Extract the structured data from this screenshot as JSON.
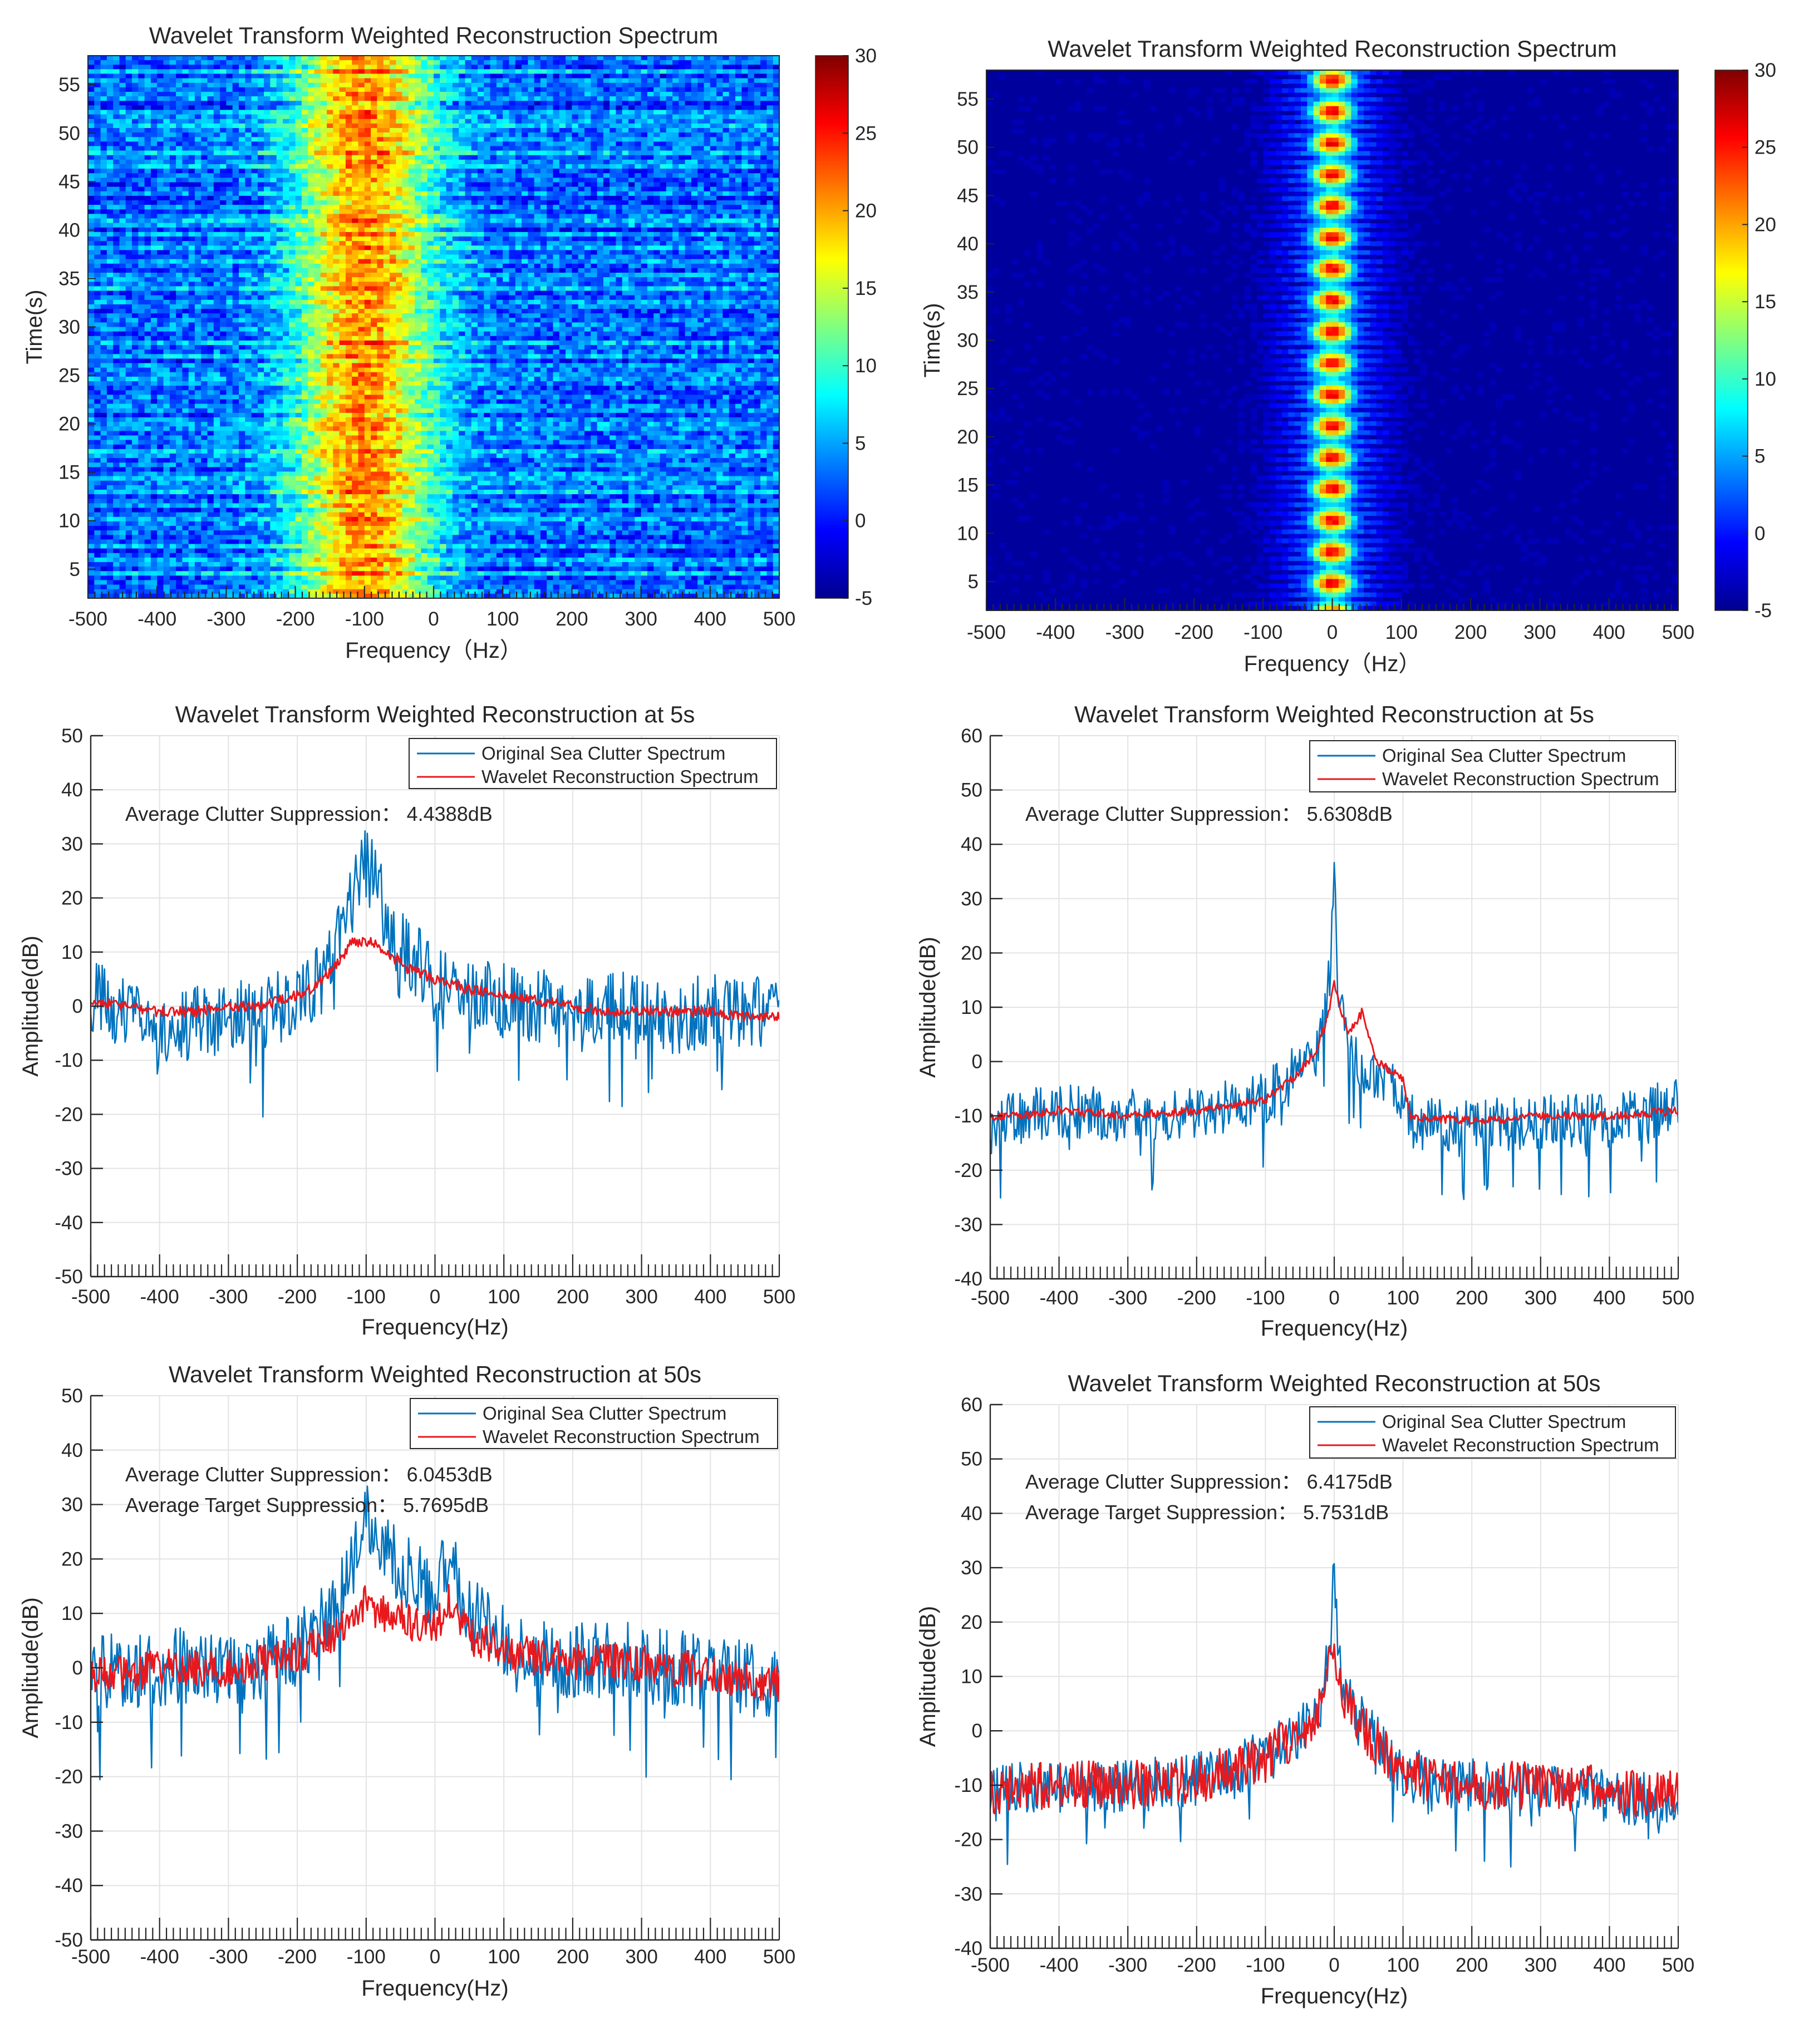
{
  "colors": {
    "blue": "#0072BD",
    "red": "#E8181D",
    "grid": "#e3e3e3",
    "axis": "#262626",
    "heat_bg": "#1e6ef0"
  },
  "chart_data": [
    {
      "id": "p1",
      "type": "heatmap",
      "title": "Wavelet Transform Weighted Reconstruction Spectrum",
      "xlabel": "Frequency（Hz）",
      "ylabel": "Time(s)",
      "xlim": [
        -500,
        500
      ],
      "ylim": [
        2,
        58
      ],
      "xticks": [
        -500,
        -400,
        -300,
        -200,
        -100,
        0,
        100,
        200,
        300,
        400,
        500
      ],
      "yticks": [
        5,
        10,
        15,
        20,
        25,
        30,
        35,
        40,
        45,
        50,
        55
      ],
      "colorbar": {
        "ticks": [
          -5,
          0,
          5,
          10,
          15,
          20,
          25,
          30
        ],
        "clim": [
          -5,
          30
        ]
      },
      "clutter_center_hz": -100,
      "clutter_width_hz": 70,
      "peak_value": 20,
      "background_value": 2.5
    },
    {
      "id": "p2",
      "type": "heatmap",
      "title": "Wavelet Transform Weighted Reconstruction Spectrum",
      "xlabel": "Frequency（Hz）",
      "ylabel": "Time(s)",
      "xlim": [
        -500,
        500
      ],
      "ylim": [
        2,
        58
      ],
      "xticks": [
        -500,
        -400,
        -300,
        -200,
        -100,
        0,
        100,
        200,
        300,
        400,
        500
      ],
      "yticks": [
        5,
        10,
        15,
        20,
        25,
        30,
        35,
        40,
        45,
        50,
        55
      ],
      "colorbar": {
        "ticks": [
          -5,
          0,
          5,
          10,
          15,
          20,
          25,
          30
        ],
        "clim": [
          -5,
          30
        ]
      },
      "clutter_center_hz": 0,
      "clutter_width_hz": 22,
      "peak_value": 24,
      "background_value": -4
    },
    {
      "id": "p3",
      "type": "line",
      "title": "Wavelet Transform Weighted Reconstruction at 5s",
      "xlabel": "Frequency(Hz)",
      "ylabel": "Amplitude(dB)",
      "xlim": [
        -500,
        500
      ],
      "ylim": [
        -50,
        50
      ],
      "xticks": [
        -500,
        -400,
        -300,
        -200,
        -100,
        0,
        100,
        200,
        300,
        400,
        500
      ],
      "yticks": [
        -50,
        -40,
        -30,
        -20,
        -10,
        0,
        10,
        20,
        30,
        40,
        50
      ],
      "legend": [
        "Original Sea Clutter Spectrum",
        "Wavelet Reconstruction Spectrum"
      ],
      "annotations": [
        "Average Clutter Suppression： 4.4388dB"
      ],
      "series": [
        {
          "name": "Original Sea Clutter Spectrum",
          "color": "#0072BD",
          "x": [
            -500,
            -450,
            -400,
            -350,
            -300,
            -250,
            -200,
            -160,
            -130,
            -110,
            -100,
            -80,
            -60,
            -40,
            0,
            50,
            100,
            150,
            200,
            250,
            300,
            350,
            400,
            450,
            500
          ],
          "y": [
            2,
            -2,
            -4,
            -3,
            -2,
            -1,
            1,
            5,
            16,
            25,
            26,
            22,
            14,
            10,
            4,
            2,
            1,
            0,
            -1,
            -1,
            0,
            -2,
            -1,
            -2,
            0
          ]
        },
        {
          "name": "Wavelet Reconstruction Spectrum",
          "color": "#E8181D",
          "x": [
            -500,
            -450,
            -400,
            -350,
            -300,
            -250,
            -200,
            -170,
            -140,
            -120,
            -100,
            -80,
            -60,
            -40,
            0,
            50,
            100,
            150,
            200,
            250,
            300,
            350,
            400,
            450,
            500
          ],
          "y": [
            1,
            0,
            -1,
            -1,
            0,
            0,
            2,
            4,
            8,
            12,
            12,
            11,
            9,
            7,
            5,
            3,
            2,
            1,
            0,
            -1,
            -1,
            -1,
            -1,
            -2,
            -2
          ]
        }
      ]
    },
    {
      "id": "p4",
      "type": "line",
      "title": "Wavelet Transform Weighted Reconstruction at 5s",
      "xlabel": "Frequency(Hz)",
      "ylabel": "Amplitude(dB)",
      "xlim": [
        -500,
        500
      ],
      "ylim": [
        -40,
        60
      ],
      "xticks": [
        -500,
        -400,
        -300,
        -200,
        -100,
        0,
        100,
        200,
        300,
        400,
        500
      ],
      "yticks": [
        -40,
        -30,
        -20,
        -10,
        0,
        10,
        20,
        30,
        40,
        50,
        60
      ],
      "legend": [
        "Original Sea Clutter Spectrum",
        "Wavelet Reconstruction Spectrum"
      ],
      "annotations": [
        "Average Clutter Suppression： 5.6308dB"
      ],
      "series": [
        {
          "name": "Original Sea Clutter Spectrum",
          "color": "#0072BD",
          "x": [
            -500,
            -450,
            -400,
            -300,
            -200,
            -100,
            -60,
            -30,
            -15,
            -5,
            0,
            5,
            15,
            30,
            60,
            100,
            110,
            200,
            300,
            400,
            500
          ],
          "y": [
            -12,
            -10,
            -9,
            -10,
            -9,
            -7,
            -2,
            2,
            7,
            18,
            33,
            16,
            6,
            0,
            -3,
            -6,
            -11,
            -12,
            -11,
            -11,
            -8
          ]
        },
        {
          "name": "Wavelet Reconstruction Spectrum",
          "color": "#E8181D",
          "x": [
            -500,
            -450,
            -400,
            -300,
            -200,
            -100,
            -60,
            -30,
            -15,
            -5,
            0,
            8,
            20,
            40,
            60,
            100,
            110,
            200,
            300,
            400,
            500
          ],
          "y": [
            -10,
            -10,
            -9,
            -10,
            -9,
            -7,
            -3,
            1,
            6,
            11,
            15,
            10,
            5,
            9,
            0,
            -3,
            -10,
            -11,
            -10,
            -10,
            -9
          ]
        }
      ]
    },
    {
      "id": "p5",
      "type": "line",
      "title": "Wavelet Transform Weighted Reconstruction at 50s",
      "xlabel": "Frequency(Hz)",
      "ylabel": "Amplitude(dB)",
      "xlim": [
        -500,
        500
      ],
      "ylim": [
        -50,
        50
      ],
      "xticks": [
        -500,
        -400,
        -300,
        -200,
        -100,
        0,
        100,
        200,
        300,
        400,
        500
      ],
      "yticks": [
        -50,
        -40,
        -30,
        -20,
        -10,
        0,
        10,
        20,
        30,
        40,
        50
      ],
      "legend": [
        "Original Sea Clutter Spectrum",
        "Wavelet Reconstruction Spectrum"
      ],
      "annotations": [
        "Average Clutter Suppression： 6.0453dB",
        "Average Target Suppression： 5.7695dB"
      ],
      "series": [
        {
          "name": "Original Sea Clutter Spectrum",
          "color": "#0072BD",
          "x": [
            -500,
            -450,
            -400,
            -350,
            -300,
            -250,
            -200,
            -150,
            -120,
            -100,
            -80,
            -50,
            -20,
            0,
            20,
            50,
            100,
            150,
            200,
            250,
            300,
            350,
            400,
            450,
            500
          ],
          "y": [
            0,
            -1,
            0,
            1,
            0,
            1,
            3,
            10,
            20,
            27,
            25,
            18,
            16,
            12,
            22,
            10,
            5,
            2,
            1,
            2,
            1,
            0,
            -1,
            -2,
            -2
          ]
        },
        {
          "name": "Wavelet Reconstruction Spectrum",
          "color": "#E8181D",
          "x": [
            -500,
            -450,
            -400,
            -350,
            -300,
            -250,
            -200,
            -150,
            -120,
            -100,
            -80,
            -50,
            -20,
            0,
            20,
            50,
            100,
            150,
            200,
            250,
            300,
            350,
            400,
            450,
            500
          ],
          "y": [
            -1,
            -1,
            0,
            0,
            0,
            1,
            2,
            6,
            10,
            12,
            10,
            9,
            8,
            7,
            12,
            6,
            3,
            2,
            1,
            1,
            1,
            0,
            -1,
            -2,
            -3
          ]
        }
      ]
    },
    {
      "id": "p6",
      "type": "line",
      "title": "Wavelet Transform Weighted Reconstruction at 50s",
      "xlabel": "Frequency(Hz)",
      "ylabel": "Amplitude(dB)",
      "xlim": [
        -500,
        500
      ],
      "ylim": [
        -40,
        60
      ],
      "xticks": [
        -500,
        -400,
        -300,
        -200,
        -100,
        0,
        100,
        200,
        300,
        400,
        500
      ],
      "yticks": [
        -40,
        -30,
        -20,
        -10,
        0,
        10,
        20,
        30,
        40,
        50,
        60
      ],
      "legend": [
        "Original Sea Clutter Spectrum",
        "Wavelet Reconstruction Spectrum"
      ],
      "annotations": [
        "Average Clutter Suppression： 6.4175dB",
        "Average Target Suppression： 5.7531dB"
      ],
      "series": [
        {
          "name": "Original Sea Clutter Spectrum",
          "color": "#0072BD",
          "x": [
            -500,
            -450,
            -400,
            -300,
            -200,
            -100,
            -60,
            -30,
            -15,
            -5,
            0,
            5,
            15,
            30,
            60,
            100,
            200,
            300,
            400,
            500
          ],
          "y": [
            -12,
            -10,
            -10,
            -10,
            -9,
            -5,
            -1,
            3,
            7,
            18,
            33,
            16,
            7,
            3,
            -2,
            -8,
            -10,
            -11,
            -12,
            -13
          ]
        },
        {
          "name": "Wavelet Reconstruction Spectrum",
          "color": "#E8181D",
          "x": [
            -500,
            -450,
            -400,
            -300,
            -200,
            -100,
            -60,
            -30,
            -15,
            -5,
            0,
            5,
            15,
            30,
            60,
            100,
            200,
            300,
            400,
            500
          ],
          "y": [
            -11,
            -10,
            -10,
            -10,
            -9,
            -5,
            -1,
            3,
            7,
            13,
            16,
            12,
            6,
            2,
            -2,
            -8,
            -10,
            -10,
            -11,
            -12
          ]
        }
      ]
    }
  ]
}
